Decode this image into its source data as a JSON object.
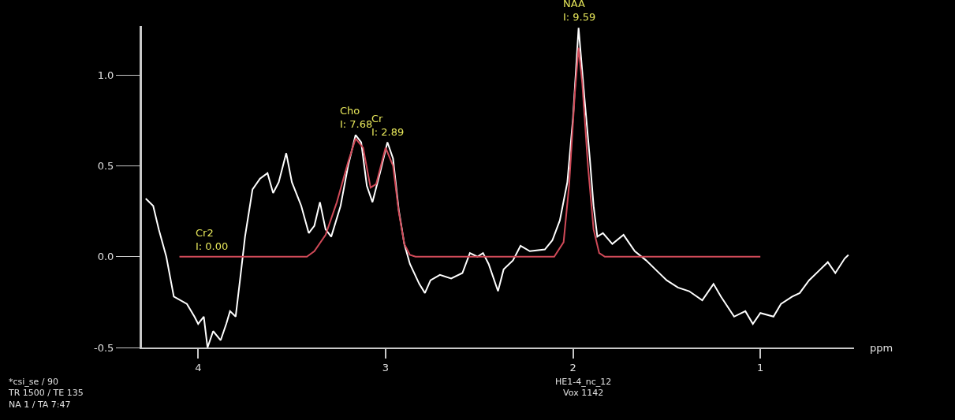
{
  "chart_data": {
    "type": "line",
    "xlabel": "ppm",
    "xlim": [
      4.3,
      0.5
    ],
    "xticks": [
      4,
      3,
      2,
      1
    ],
    "ylim": [
      -0.5,
      1.27
    ],
    "yticks": [
      {
        "value": -0.5,
        "label": "-0.5"
      },
      {
        "value": 0,
        "label": "0.0"
      },
      {
        "value": 0.5,
        "label": "0.5"
      },
      {
        "value": 1.0,
        "label": "1.0"
      }
    ],
    "grid": false,
    "marker": "none",
    "line_style": "solid",
    "series": [
      {
        "color": "#ffffff",
        "x": [
          4.28,
          4.24,
          4.21,
          4.17,
          4.13,
          4.06,
          4.02,
          4.0,
          3.97,
          3.95,
          3.92,
          3.88,
          3.85,
          3.83,
          3.8,
          3.77,
          3.75,
          3.71,
          3.67,
          3.63,
          3.6,
          3.57,
          3.53,
          3.5,
          3.45,
          3.41,
          3.38,
          3.35,
          3.32,
          3.29,
          3.24,
          3.2,
          3.16,
          3.13,
          3.1,
          3.07,
          3.03,
          2.99,
          2.96,
          2.93,
          2.9,
          2.87,
          2.82,
          2.79,
          2.76,
          2.71,
          2.65,
          2.59,
          2.55,
          2.51,
          2.48,
          2.45,
          2.4,
          2.37,
          2.32,
          2.28,
          2.23,
          2.15,
          2.11,
          2.07,
          2.03,
          2.0,
          1.97,
          1.94,
          1.91,
          1.89,
          1.87,
          1.84,
          1.79,
          1.73,
          1.67,
          1.61,
          1.56,
          1.5,
          1.44,
          1.38,
          1.31,
          1.25,
          1.21,
          1.14,
          1.08,
          1.04,
          1.0,
          0.93,
          0.89,
          0.83,
          0.79,
          0.74,
          0.68,
          0.64,
          0.6,
          0.55,
          0.53
        ],
        "values": [
          0.32,
          0.28,
          0.15,
          0.0,
          -0.22,
          -0.26,
          -0.33,
          -0.37,
          -0.33,
          -0.5,
          -0.41,
          -0.46,
          -0.37,
          -0.3,
          -0.33,
          -0.07,
          0.11,
          0.37,
          0.43,
          0.46,
          0.35,
          0.41,
          0.57,
          0.41,
          0.28,
          0.13,
          0.17,
          0.3,
          0.15,
          0.11,
          0.28,
          0.5,
          0.67,
          0.63,
          0.39,
          0.3,
          0.46,
          0.63,
          0.54,
          0.26,
          0.07,
          -0.04,
          -0.15,
          -0.2,
          -0.13,
          -0.1,
          -0.12,
          -0.09,
          0.02,
          0.0,
          0.02,
          -0.04,
          -0.19,
          -0.07,
          -0.02,
          0.06,
          0.03,
          0.04,
          0.09,
          0.2,
          0.41,
          0.76,
          1.26,
          0.89,
          0.54,
          0.28,
          0.11,
          0.13,
          0.07,
          0.12,
          0.03,
          -0.02,
          -0.07,
          -0.13,
          -0.17,
          -0.19,
          -0.24,
          -0.15,
          -0.22,
          -0.33,
          -0.3,
          -0.37,
          -0.31,
          -0.33,
          -0.26,
          -0.22,
          -0.2,
          -0.13,
          -0.07,
          -0.03,
          -0.09,
          -0.01,
          0.01
        ]
      },
      {
        "color": "#d04a58",
        "x": [
          4.1,
          3.42,
          3.38,
          3.32,
          3.26,
          3.2,
          3.16,
          3.12,
          3.08,
          3.05,
          3.0,
          2.96,
          2.93,
          2.9,
          2.87,
          2.84,
          2.1,
          2.05,
          2.02,
          1.99,
          1.97,
          1.95,
          1.92,
          1.89,
          1.86,
          1.83,
          1.0
        ],
        "values": [
          0,
          0,
          0.03,
          0.12,
          0.3,
          0.52,
          0.65,
          0.6,
          0.38,
          0.4,
          0.6,
          0.5,
          0.25,
          0.07,
          0.01,
          0,
          0,
          0.08,
          0.4,
          0.9,
          1.15,
          0.95,
          0.5,
          0.15,
          0.02,
          0,
          0
        ]
      }
    ],
    "annotations": [
      {
        "text": "Cho\nI: 7.68",
        "x": 3.16,
        "y": 0.67
      },
      {
        "text": "Cr\nI: 2.89",
        "x": 2.99,
        "y": 0.63
      },
      {
        "text": "NAA\nI: 9.59",
        "x": 1.97,
        "y": 1.26
      },
      {
        "text": "Cr2\nI: 0.00",
        "x": 3.93,
        "y": 0.0
      },
      "*csi_se / 90\nTR 1500 / TE 135\nNA 1 / TA 7:47",
      "HE1-4_nc_12\nVox 1142"
    ]
  }
}
